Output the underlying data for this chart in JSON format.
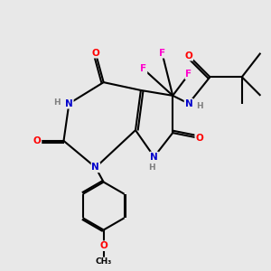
{
  "bg_color": "#e8e8e8",
  "bond_color": "#000000",
  "atom_colors": {
    "N": "#0000cc",
    "O": "#ff0000",
    "F": "#ff00cc",
    "C": "#000000",
    "H": "#7f7f7f"
  },
  "figsize": [
    3.0,
    3.0
  ],
  "dpi": 100
}
